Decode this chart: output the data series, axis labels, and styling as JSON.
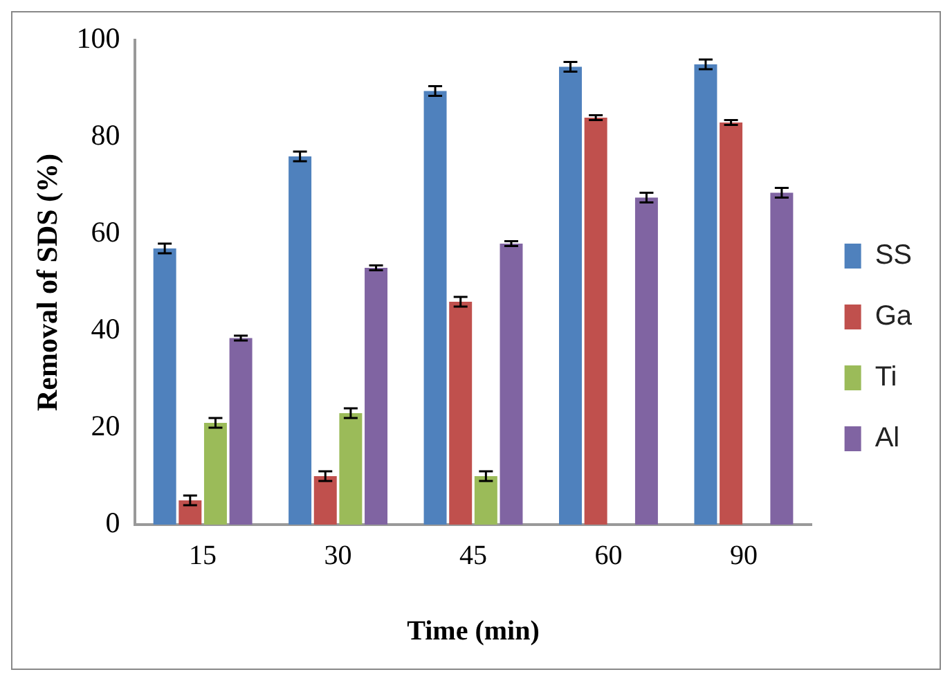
{
  "chart_data": {
    "type": "bar",
    "xlabel": "Time (min)",
    "ylabel": "Removal of SDS (%)",
    "categories": [
      "15",
      "30",
      "45",
      "60",
      "90"
    ],
    "series": [
      {
        "name": "SS",
        "color": "#4f81bd",
        "values": [
          57,
          76,
          89.5,
          94.5,
          95
        ],
        "errors": [
          1,
          1,
          1,
          1,
          1
        ]
      },
      {
        "name": "Ga",
        "color": "#c0504d",
        "values": [
          5,
          10,
          46,
          84,
          83
        ],
        "errors": [
          1,
          1,
          1,
          0.5,
          0.5
        ]
      },
      {
        "name": "Ti",
        "color": "#9bbb59",
        "values": [
          21,
          23,
          10,
          null,
          null
        ],
        "errors": [
          1,
          1,
          1,
          null,
          null
        ]
      },
      {
        "name": "Al",
        "color": "#8064a2",
        "values": [
          38.5,
          53,
          58,
          67.5,
          68.5
        ],
        "errors": [
          0.5,
          0.5,
          0.5,
          1,
          1
        ]
      }
    ],
    "ylim": [
      0,
      100
    ],
    "yticks": [
      0,
      20,
      40,
      60,
      80,
      100
    ],
    "grid": false,
    "legend": "right"
  }
}
